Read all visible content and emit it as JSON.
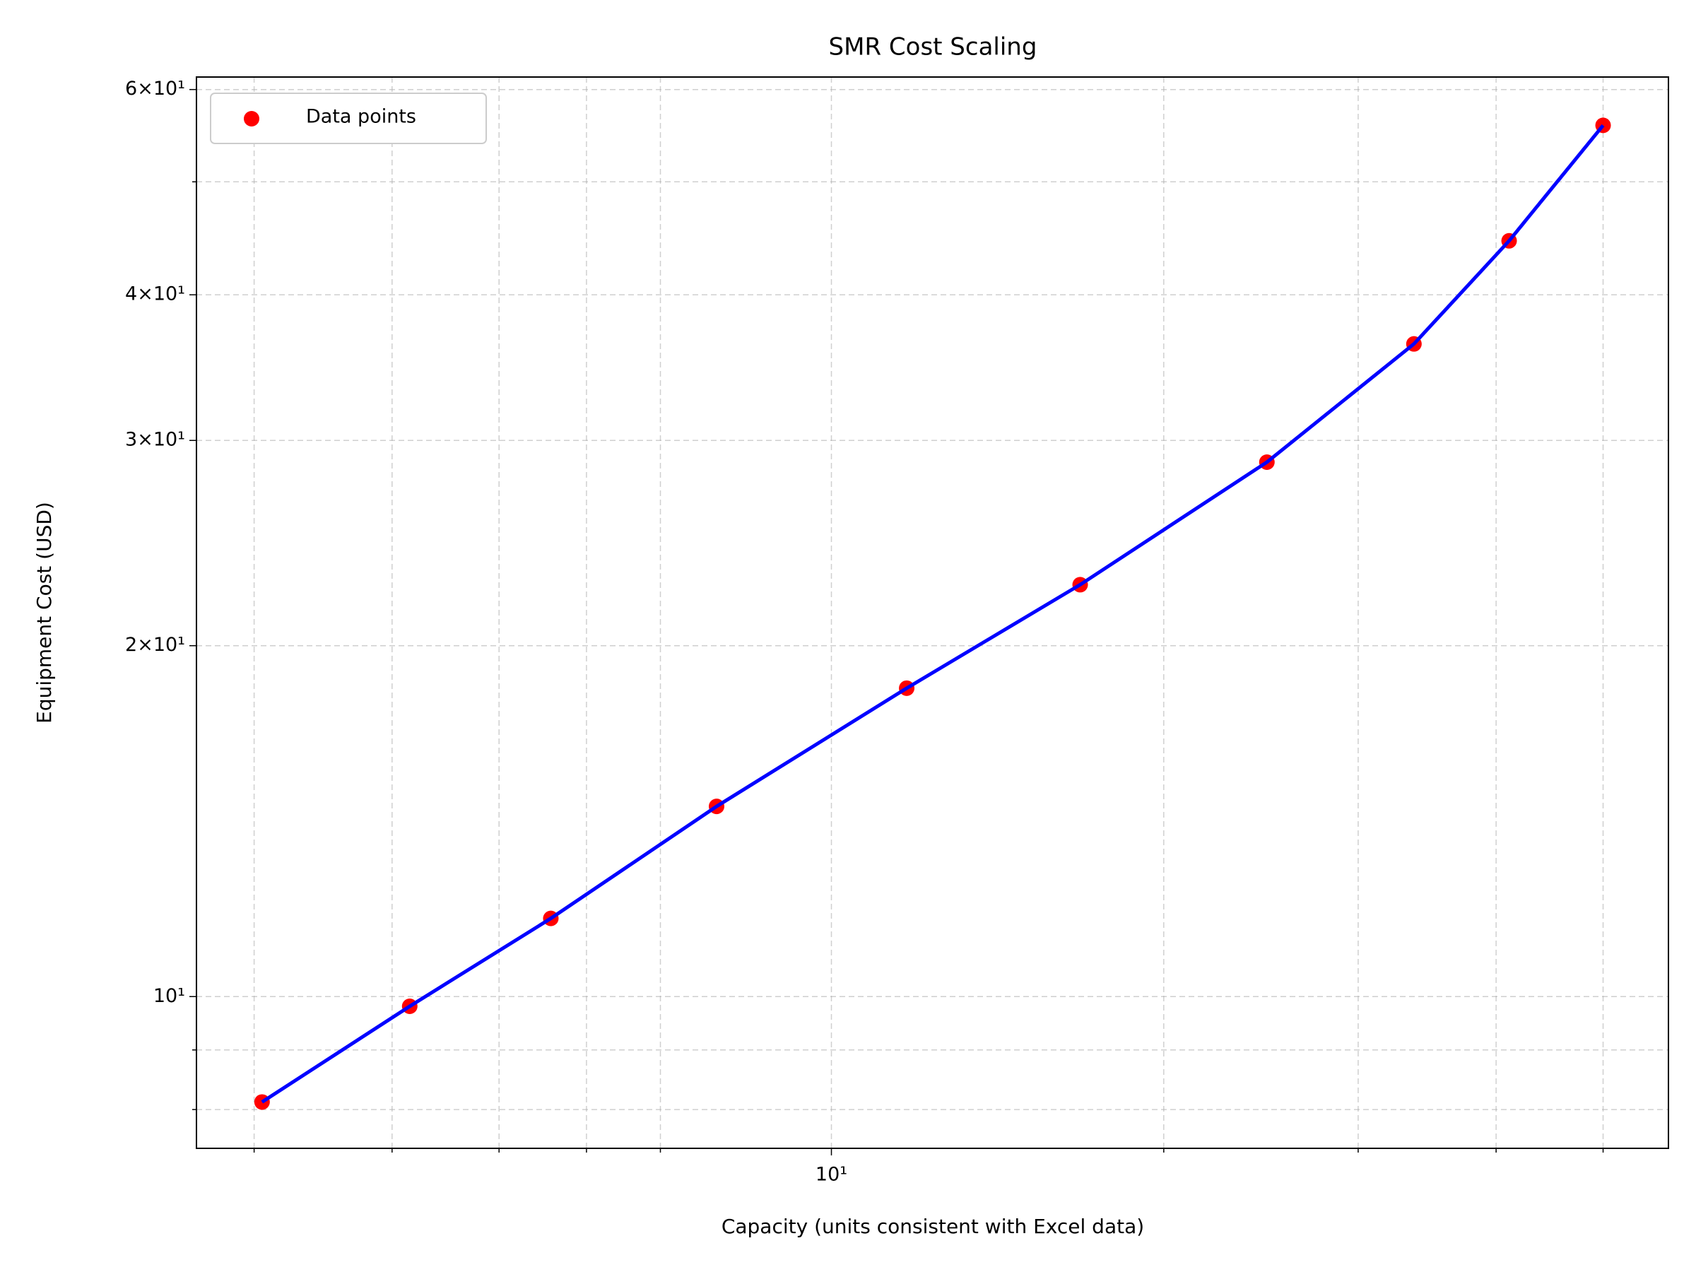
{
  "chart_data": {
    "type": "scatter",
    "title": "SMR Cost Scaling",
    "x_label": "Capacity (units consistent with Excel data)",
    "y_label": "Equipment Cost (USD)",
    "x_scale": "log",
    "y_scale": "log",
    "xlim": [
      2.66,
      57.3
    ],
    "ylim": [
      7.41,
      61.5
    ],
    "xticks": [
      {
        "value": 10,
        "label": "10¹"
      }
    ],
    "x_minor_ticks": [
      3,
      4,
      5,
      6,
      7,
      20,
      30,
      40,
      50
    ],
    "yticks": [
      {
        "value": 10,
        "label": "10¹"
      },
      {
        "value": 20,
        "label": "2×10¹"
      },
      {
        "value": 30,
        "label": "3×10¹"
      },
      {
        "value": 40,
        "label": "4×10¹"
      },
      {
        "value": 60,
        "label": "6×10¹"
      }
    ],
    "y_minor_ticks": [
      8,
      9,
      50
    ],
    "grid": true,
    "legend_position": "upper-left",
    "line_color": "#0000ff",
    "series": [
      {
        "name": "Data points",
        "color": "#ff0000",
        "x": [
          3.05,
          4.15,
          5.57,
          7.87,
          11.7,
          16.8,
          24.8,
          33.7,
          41.1,
          50
        ],
        "values": [
          8.12,
          9.81,
          11.67,
          14.56,
          18.39,
          22.56,
          28.74,
          36.3,
          44.5,
          55.9
        ]
      }
    ]
  }
}
